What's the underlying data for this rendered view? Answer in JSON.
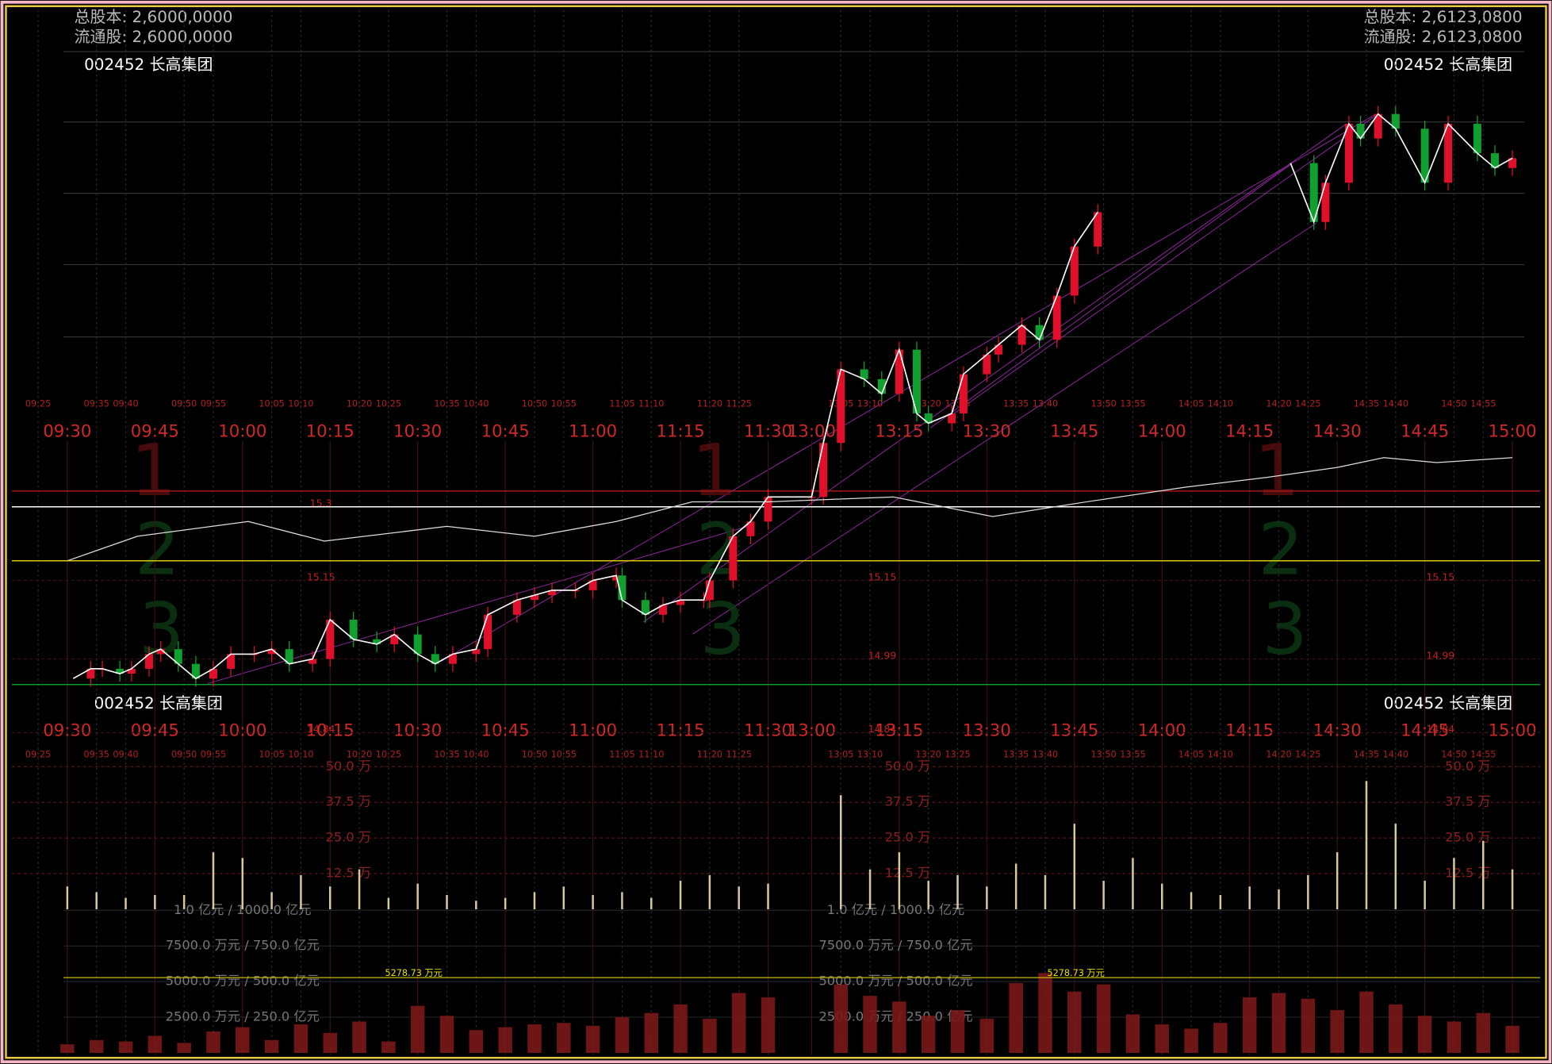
{
  "chart_data": {
    "type": "intraday",
    "info_left": {
      "total_shares": "总股本: 2,6000,0000",
      "float_shares": "流通股: 2,6000,0000"
    },
    "info_right": {
      "total_shares": "总股本: 2,6123,0800",
      "float_shares": "流通股: 2,6123,0800"
    },
    "stock_name": "002452 长高集团",
    "time_labels": [
      "09:30",
      "09:45",
      "10:00",
      "10:15",
      "10:30",
      "10:45",
      "11:00",
      "11:15",
      "11:30",
      "13:00",
      "13:15",
      "13:30",
      "13:45",
      "14:00",
      "14:15",
      "14:30",
      "14:45",
      "15:00"
    ],
    "minor_time_labels": [
      "09:25",
      "09:35",
      "09:40",
      "09:50",
      "09:55",
      "10:05",
      "10:10",
      "10:20",
      "10:25",
      "10:35",
      "10:40",
      "10:50",
      "10:55",
      "11:05",
      "11:10",
      "11:20",
      "11:25",
      "13:05",
      "13:10",
      "13:20",
      "13:25",
      "13:35",
      "13:40",
      "13:50",
      "13:55",
      "14:05",
      "14:10",
      "14:20",
      "14:25",
      "14:35",
      "14:40",
      "14:50",
      "14:55"
    ],
    "watermarks": [
      "1",
      "2",
      "3"
    ],
    "ylim": [
      14.94,
      16.13
    ],
    "yticks": [
      15.3,
      15.15,
      14.99,
      14.84
    ],
    "ref_lines": [
      {
        "value": 15.332,
        "color": "#a01818"
      },
      {
        "value": 15.3,
        "color": "#ffffff"
      },
      {
        "value": 15.19,
        "color": "#d8c800"
      },
      {
        "value": 14.938,
        "color": "#0a9a2a"
      }
    ],
    "series": [
      {
        "name": "price",
        "color": "#ffffff",
        "up_color": "#e0102a",
        "down_color": "#10a030",
        "x": [
          "09:31",
          "09:34",
          "09:36",
          "09:39",
          "09:41",
          "09:44",
          "09:46",
          "09:49",
          "09:52",
          "09:55",
          "09:58",
          "10:02",
          "10:05",
          "10:08",
          "10:12",
          "10:15",
          "10:19",
          "10:23",
          "10:26",
          "10:30",
          "10:33",
          "10:36",
          "10:40",
          "10:42",
          "10:47",
          "10:50",
          "10:53",
          "10:57",
          "11:00",
          "11:04",
          "11:05",
          "11:09",
          "11:12",
          "11:15",
          "11:19",
          "11:20",
          "11:24",
          "11:27",
          "11:30",
          "13:00",
          "13:02",
          "13:05",
          "13:09",
          "13:12",
          "13:15",
          "13:18",
          "13:20",
          "13:24",
          "13:26",
          "13:30",
          "13:32",
          "13:36",
          "13:39",
          "13:42",
          "13:45",
          "13:49",
          null,
          "14:22",
          "14:26",
          "14:28",
          "14:32",
          "14:34",
          "14:37",
          "14:40",
          "14:45",
          "14:49",
          "14:54",
          "14:57",
          "15:00"
        ],
        "values": [
          14.95,
          14.97,
          14.97,
          14.96,
          14.97,
          15.0,
          15.01,
          14.98,
          14.95,
          14.97,
          15.0,
          15.0,
          15.01,
          14.98,
          14.99,
          15.07,
          15.03,
          15.02,
          15.04,
          15.0,
          14.98,
          15.0,
          15.01,
          15.08,
          15.11,
          15.12,
          15.13,
          15.13,
          15.15,
          15.16,
          15.11,
          15.08,
          15.1,
          15.11,
          15.11,
          15.15,
          15.24,
          15.27,
          15.32,
          15.32,
          15.43,
          15.58,
          15.56,
          15.53,
          15.62,
          15.49,
          15.47,
          15.49,
          15.57,
          15.61,
          15.63,
          15.67,
          15.64,
          15.73,
          15.83,
          15.9,
          null,
          16.0,
          15.88,
          15.96,
          16.08,
          16.05,
          16.1,
          16.07,
          15.96,
          16.08,
          16.02,
          15.99,
          16.01
        ]
      },
      {
        "name": "average",
        "color": "#dddddd",
        "x": [
          "09:30",
          "09:42",
          "10:01",
          "10:14",
          "10:35",
          "10:50",
          "11:04",
          "11:17",
          "11:30",
          "13:14",
          "13:31",
          "13:47",
          "14:04",
          "14:18",
          "14:30",
          "14:38",
          "14:47",
          "15:00"
        ],
        "values": [
          15.19,
          15.24,
          15.27,
          15.23,
          15.26,
          15.24,
          15.27,
          15.31,
          15.31,
          15.32,
          15.28,
          15.31,
          15.34,
          15.36,
          15.38,
          15.4,
          15.39,
          15.4
        ]
      }
    ],
    "bar_times": [
      "09:30",
      "09:35",
      "09:40",
      "09:45",
      "09:50",
      "09:55",
      "10:00",
      "10:05",
      "10:10",
      "10:15",
      "10:20",
      "10:25",
      "10:30",
      "10:35",
      "10:40",
      "10:45",
      "10:50",
      "10:55",
      "11:00",
      "11:05",
      "11:10",
      "11:15",
      "11:20",
      "11:25",
      "11:30",
      "13:05",
      "13:10",
      "13:15",
      "13:20",
      "13:25",
      "13:30",
      "13:35",
      "13:40",
      "13:45",
      "13:50",
      "13:55",
      "14:00",
      "14:05",
      "14:10",
      "14:15",
      "14:20",
      "14:25",
      "14:30",
      "14:35",
      "14:40",
      "14:45",
      "14:50",
      "14:55",
      "15:00"
    ],
    "volume": {
      "color": "#d8c8a0",
      "ylim": [
        0,
        50
      ],
      "yticks": [
        {
          "value": 50,
          "label": "50.0 万"
        },
        {
          "value": 37.5,
          "label": "37.5 万"
        },
        {
          "value": 25,
          "label": "25.0 万"
        },
        {
          "value": 12.5,
          "label": "12.5 万"
        }
      ],
      "values": [
        8,
        6,
        4,
        5,
        5,
        20,
        18,
        6,
        12,
        8,
        14,
        4,
        9,
        5,
        3,
        4,
        6,
        8,
        5,
        6,
        4,
        10,
        12,
        8,
        9,
        40,
        14,
        20,
        10,
        12,
        8,
        16,
        12,
        30,
        10,
        18,
        9,
        6,
        5,
        8,
        7,
        12,
        20,
        45,
        30,
        10,
        18,
        24,
        14
      ]
    },
    "amount": {
      "color": "#7a1818",
      "ylim": [
        0,
        10000
      ],
      "yticks": [
        {
          "value": 10000,
          "label": "1.0 亿元 / 1000.0 亿元"
        },
        {
          "value": 7500,
          "label": "7500.0 万元 / 750.0 亿元"
        },
        {
          "value": 5000,
          "label": "5000.0 万元 / 500.0 亿元"
        },
        {
          "value": 2500,
          "label": "2500.0 万元 / 250.0 亿元"
        }
      ],
      "average": 5278.73,
      "average_label": "5278.73 万元",
      "values": [
        600,
        900,
        800,
        1200,
        700,
        1500,
        1800,
        900,
        2000,
        1400,
        2200,
        800,
        3300,
        2600,
        1600,
        1800,
        2000,
        2100,
        1900,
        2500,
        2800,
        3400,
        2400,
        4200,
        3900,
        4800,
        4000,
        3600,
        2600,
        3000,
        2400,
        4900,
        5600,
        4300,
        4800,
        2700,
        2000,
        1700,
        2100,
        3900,
        4200,
        3800,
        3000,
        4300,
        3400,
        2600,
        2200,
        2800,
        1900
      ]
    }
  }
}
